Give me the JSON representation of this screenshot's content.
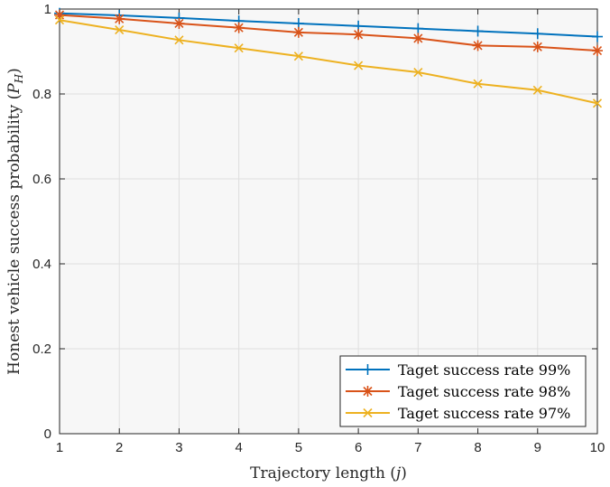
{
  "chart_data": {
    "type": "line",
    "xlabel": "Trajectory length (j)",
    "ylabel": "Honest vehicle success probability (P_H)",
    "xlim": [
      1,
      10
    ],
    "ylim": [
      0,
      1
    ],
    "grid": true,
    "legend_position": "bottom-right",
    "x": [
      1,
      2,
      3,
      4,
      5,
      6,
      7,
      8,
      9,
      10
    ],
    "x_ticks": [
      "1",
      "2",
      "3",
      "4",
      "5",
      "6",
      "7",
      "8",
      "9",
      "10"
    ],
    "y_ticks": [
      "0",
      "0.2",
      "0.4",
      "0.6",
      "0.8",
      "1"
    ],
    "series": [
      {
        "name": "Taget success rate 99%",
        "color": "#0072BD",
        "marker": "plus",
        "values": [
          0.99,
          0.985,
          0.979,
          0.972,
          0.966,
          0.96,
          0.954,
          0.948,
          0.942,
          0.935
        ]
      },
      {
        "name": "Taget success rate 98%",
        "color": "#D95319",
        "marker": "asterisk",
        "values": [
          0.986,
          0.977,
          0.966,
          0.956,
          0.945,
          0.94,
          0.931,
          0.914,
          0.911,
          0.902
        ]
      },
      {
        "name": "Taget success rate 97%",
        "color": "#EDB120",
        "marker": "cross",
        "values": [
          0.974,
          0.951,
          0.927,
          0.908,
          0.889,
          0.867,
          0.851,
          0.824,
          0.809,
          0.778
        ]
      }
    ]
  }
}
